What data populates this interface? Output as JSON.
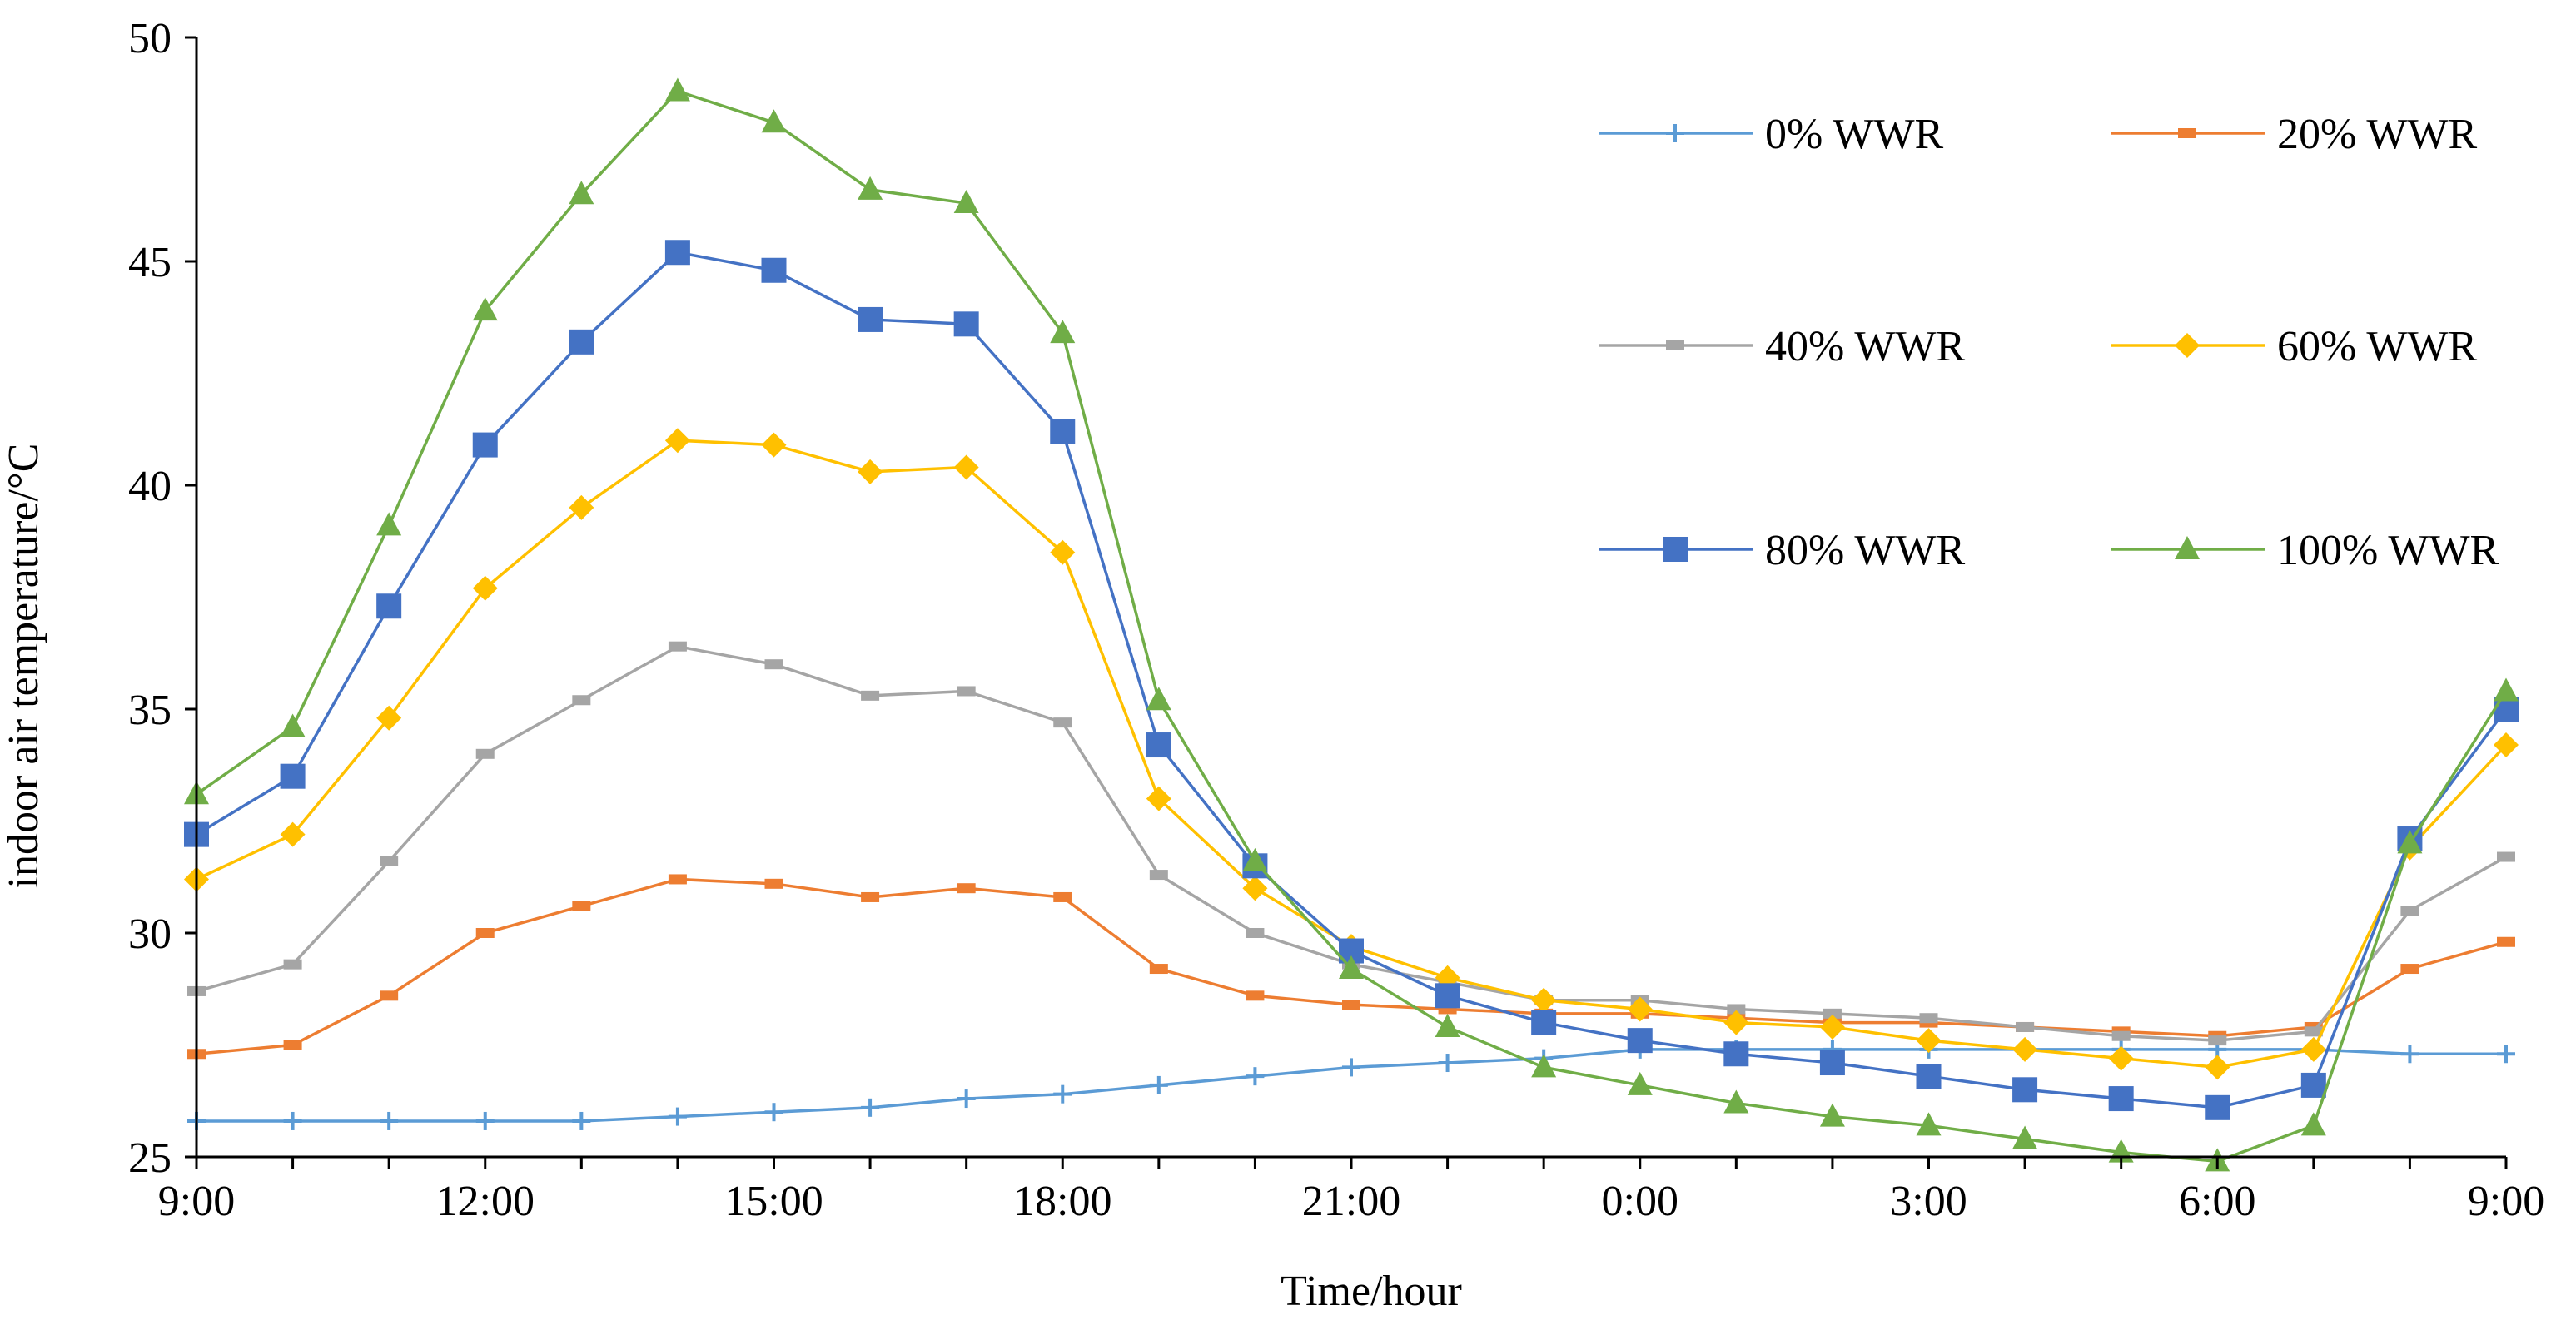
{
  "chart_data": {
    "type": "line",
    "title": "",
    "xlabel": "Time/hour",
    "ylabel": "indoor air temperature/°C",
    "ylim": [
      25,
      50
    ],
    "y_ticks": [
      25,
      30,
      35,
      40,
      45,
      50
    ],
    "x_ticks": [
      "9:00",
      "12:00",
      "15:00",
      "18:00",
      "21:00",
      "0:00",
      "3:00",
      "6:00",
      "9:00"
    ],
    "grid": false,
    "legend_position": "top-right",
    "x": [
      "9:00",
      "10:00",
      "11:00",
      "12:00",
      "13:00",
      "14:00",
      "15:00",
      "16:00",
      "17:00",
      "18:00",
      "19:00",
      "20:00",
      "21:00",
      "22:00",
      "23:00",
      "0:00",
      "1:00",
      "2:00",
      "3:00",
      "4:00",
      "5:00",
      "6:00",
      "7:00",
      "8:00",
      "9:00"
    ],
    "series": [
      {
        "name": "0% WWR",
        "marker": "plus",
        "color": "#5B9BD5",
        "values": [
          25.8,
          25.8,
          25.8,
          25.8,
          25.8,
          25.9,
          26.0,
          26.1,
          26.3,
          26.4,
          26.6,
          26.8,
          27.0,
          27.1,
          27.2,
          27.4,
          27.4,
          27.4,
          27.4,
          27.4,
          27.4,
          27.4,
          27.4,
          27.3,
          27.3
        ]
      },
      {
        "name": "20% WWR",
        "marker": "dash",
        "color": "#ED7D31",
        "values": [
          27.3,
          27.5,
          28.6,
          30.0,
          30.6,
          31.2,
          31.1,
          30.8,
          31.0,
          30.8,
          29.2,
          28.6,
          28.4,
          28.3,
          28.2,
          28.2,
          28.1,
          28.0,
          28.0,
          27.9,
          27.8,
          27.7,
          27.9,
          29.2,
          29.8
        ]
      },
      {
        "name": "40% WWR",
        "marker": "dash",
        "color": "#A5A5A5",
        "values": [
          28.7,
          29.3,
          31.6,
          34.0,
          35.2,
          36.4,
          36.0,
          35.3,
          35.4,
          34.7,
          31.3,
          30.0,
          29.3,
          28.9,
          28.5,
          28.5,
          28.3,
          28.2,
          28.1,
          27.9,
          27.7,
          27.6,
          27.8,
          30.5,
          31.7
        ]
      },
      {
        "name": "60% WWR",
        "marker": "diamond",
        "color": "#FFC000",
        "values": [
          31.2,
          32.2,
          34.8,
          37.7,
          39.5,
          41.0,
          40.9,
          40.3,
          40.4,
          38.5,
          33.0,
          31.0,
          29.7,
          29.0,
          28.5,
          28.3,
          28.0,
          27.9,
          27.6,
          27.4,
          27.2,
          27.0,
          27.4,
          31.9,
          34.2
        ]
      },
      {
        "name": "80% WWR",
        "marker": "square",
        "color": "#4472C4",
        "values": [
          32.2,
          33.5,
          37.3,
          40.9,
          43.2,
          45.2,
          44.8,
          43.7,
          43.6,
          41.2,
          34.2,
          31.5,
          29.6,
          28.6,
          28.0,
          27.6,
          27.3,
          27.1,
          26.8,
          26.5,
          26.3,
          26.1,
          26.6,
          32.1,
          35.0
        ]
      },
      {
        "name": "100% WWR",
        "marker": "triangle",
        "color": "#70AD47",
        "values": [
          33.1,
          34.6,
          39.1,
          43.9,
          46.5,
          48.8,
          48.1,
          46.6,
          46.3,
          43.4,
          35.2,
          31.6,
          29.2,
          27.9,
          27.0,
          26.6,
          26.2,
          25.9,
          25.7,
          25.4,
          25.1,
          24.9,
          25.7,
          32.0,
          35.4
        ]
      }
    ]
  }
}
